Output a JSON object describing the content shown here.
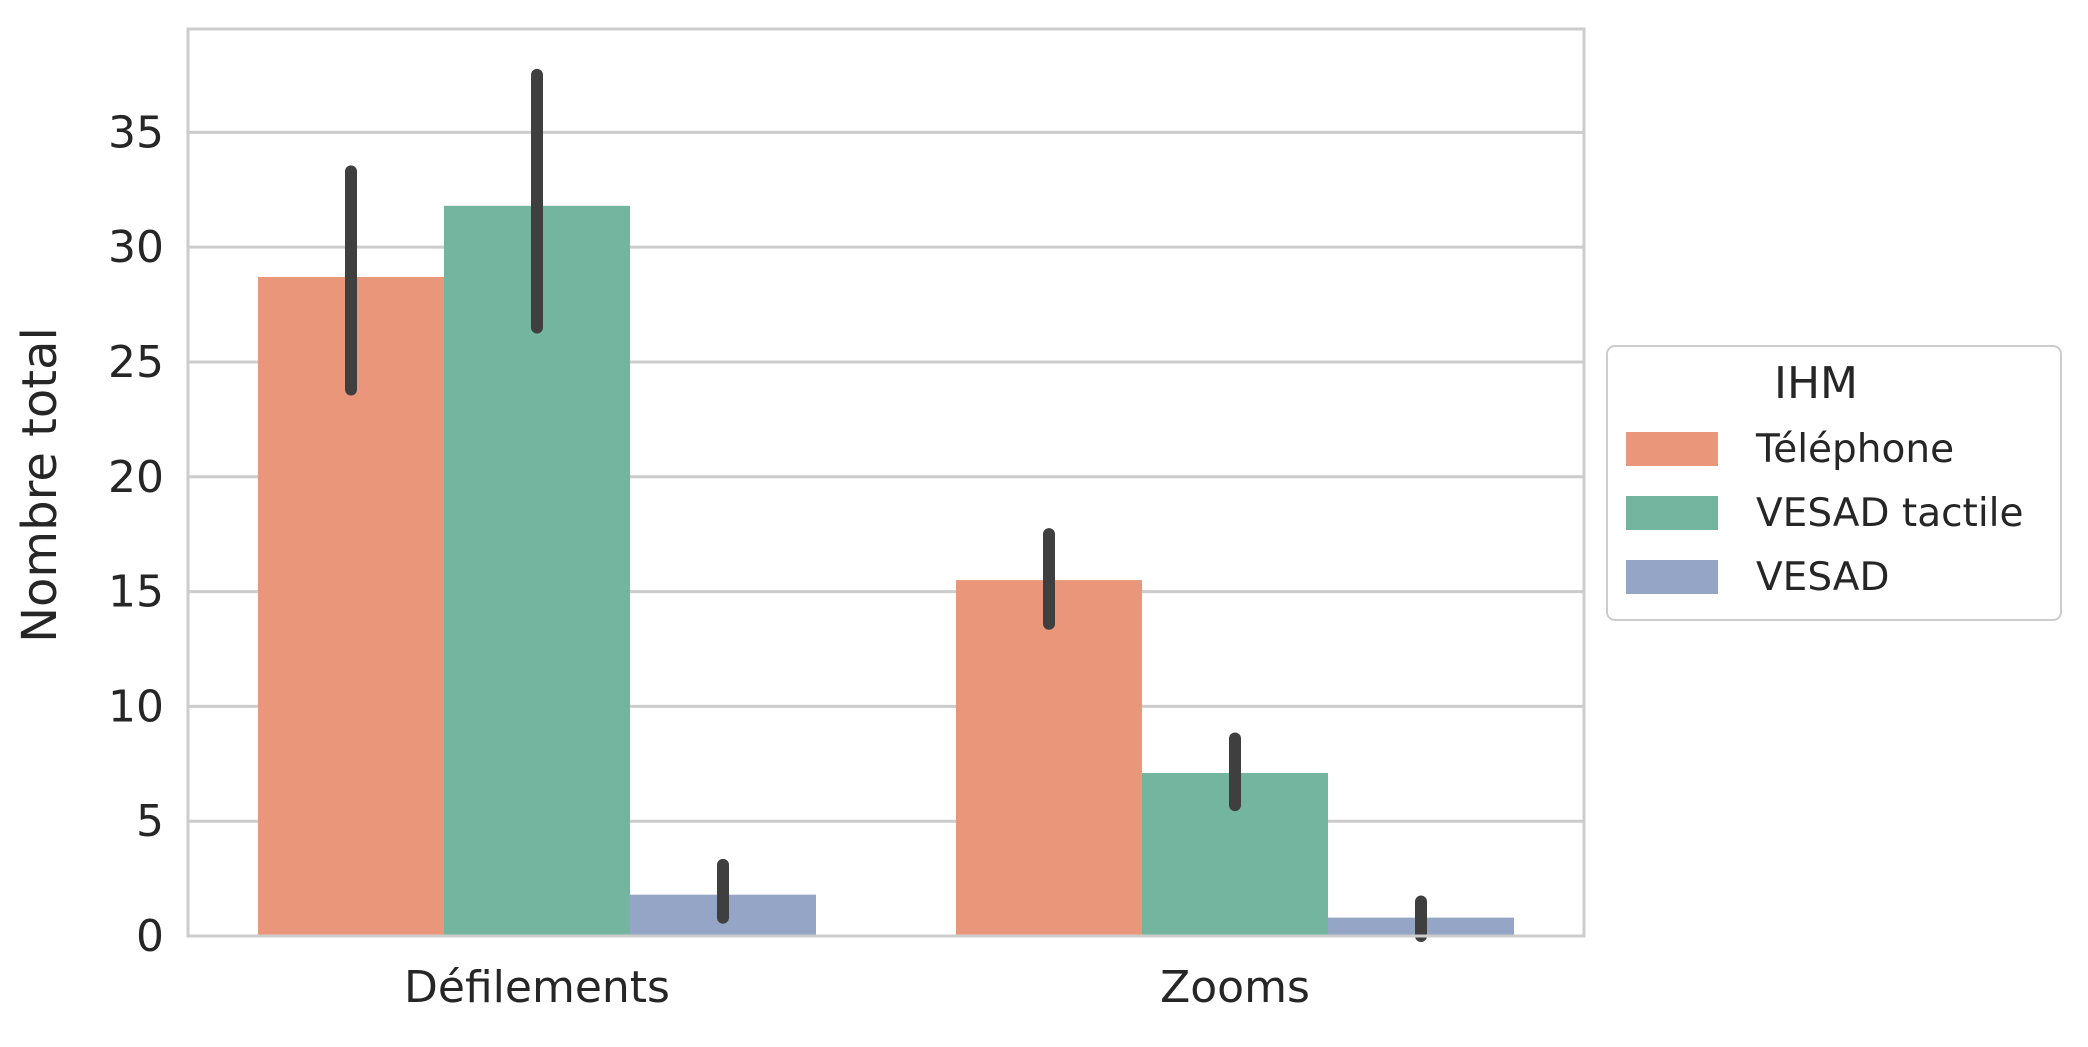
{
  "chart_data": {
    "type": "bar",
    "title": "",
    "xlabel": "",
    "ylabel": "Nombre total",
    "categories": [
      "Défilements",
      "Zooms"
    ],
    "ylim": [
      0,
      39.5
    ],
    "yticks": [
      0,
      5,
      10,
      15,
      20,
      25,
      30,
      35
    ],
    "grid": "horizontal",
    "legend": {
      "title": "IHM",
      "placement": "right-outside"
    },
    "series": [
      {
        "name": "Téléphone",
        "color": "#e9967a",
        "values": [
          28.7,
          15.5
        ],
        "error_low": [
          23.8,
          13.6
        ],
        "error_high": [
          33.3,
          17.5
        ]
      },
      {
        "name": "VESAD tactile",
        "color": "#74b5a0",
        "values": [
          31.8,
          7.1
        ],
        "error_low": [
          26.5,
          5.7
        ],
        "error_high": [
          37.5,
          8.6
        ]
      },
      {
        "name": "VESAD",
        "color": "#95a5c6",
        "values": [
          1.8,
          0.8
        ],
        "error_low": [
          0.8,
          0.0
        ],
        "error_high": [
          3.1,
          1.5
        ]
      }
    ],
    "error_bar_color": "#3f3f3f",
    "grid_color": "#cccccc",
    "spine_color": "#cccccc"
  }
}
